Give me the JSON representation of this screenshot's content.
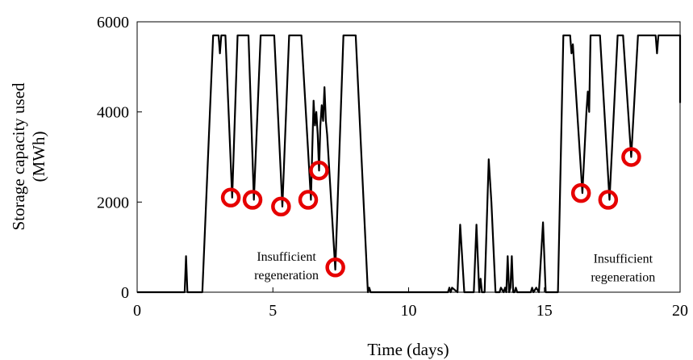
{
  "chart_data": {
    "type": "line",
    "title": "",
    "xlabel": "Time (days)",
    "ylabel_lines": [
      "Storage capacity used",
      "(MWh)"
    ],
    "xlim": [
      0,
      20
    ],
    "ylim": [
      0,
      6000
    ],
    "x_ticks": [
      0,
      5,
      10,
      15,
      20
    ],
    "y_ticks": [
      0,
      2000,
      4000,
      6000
    ],
    "grid": false,
    "line_color": "#000000",
    "marker_color": "#e60000",
    "series": [
      {
        "x": [
          0,
          1.75,
          1.8,
          1.85,
          1.9,
          2.0,
          2.4,
          2.8,
          3.0,
          3.05,
          3.1,
          3.15,
          3.2,
          3.25,
          3.5,
          3.7,
          3.9,
          4.1,
          4.3,
          4.55,
          4.75,
          4.8,
          5.05,
          5.35,
          5.6,
          5.6,
          6.05,
          6.4,
          6.5,
          6.55,
          6.6,
          6.65,
          6.7,
          6.75,
          6.8,
          6.85,
          6.9,
          6.95,
          7.0,
          7.3,
          7.6,
          7.75,
          7.95,
          8.05,
          8.5,
          8.55,
          8.6,
          8.65,
          11.45,
          11.5,
          11.55,
          11.6,
          11.7,
          11.8,
          11.9,
          12.05,
          12.4,
          12.5,
          12.6,
          12.65,
          12.7,
          12.8,
          12.95,
          13.05,
          13.2,
          13.35,
          13.4,
          13.5,
          13.55,
          13.6,
          13.65,
          13.7,
          13.75,
          13.8,
          13.85,
          13.9,
          13.95,
          14.0,
          14.5,
          14.55,
          14.6,
          14.7,
          14.8,
          14.95,
          15.05,
          15.5,
          15.7,
          15.95,
          16.0,
          16.05,
          16.4,
          16.55,
          16.6,
          16.65,
          16.7,
          16.8,
          17.05,
          17.4,
          17.7,
          17.9,
          18.2,
          18.45,
          18.95,
          19.0,
          19.05,
          19.1,
          19.15,
          19.2,
          19.25,
          19.3,
          20.0,
          20.0
        ],
        "y": [
          0,
          0,
          800,
          0,
          0,
          0,
          0,
          5700,
          5700,
          5300,
          5700,
          5700,
          5700,
          5700,
          2100,
          5700,
          5700,
          5700,
          2050,
          5700,
          5700,
          5700,
          5700,
          1900,
          5700,
          5700,
          5700,
          2050,
          4250,
          3700,
          4000,
          3500,
          2700,
          3700,
          4150,
          3800,
          4550,
          3800,
          3500,
          500,
          5700,
          5700,
          5700,
          5700,
          0,
          100,
          0,
          0,
          0,
          100,
          0,
          100,
          50,
          0,
          1500,
          0,
          0,
          1500,
          0,
          300,
          0,
          0,
          2950,
          2000,
          0,
          0,
          100,
          0,
          100,
          0,
          800,
          0,
          100,
          800,
          0,
          0,
          100,
          0,
          0,
          100,
          0,
          100,
          0,
          1550,
          0,
          0,
          5700,
          5700,
          5300,
          5500,
          2200,
          4000,
          4450,
          4000,
          5700,
          5700,
          5700,
          2050,
          5700,
          5700,
          3000,
          5700,
          5700,
          5700,
          5700,
          5700,
          5300,
          5700,
          5700,
          5700,
          5700,
          4200
        ]
      }
    ],
    "circled_points": [
      {
        "x": 3.45,
        "y": 2100
      },
      {
        "x": 4.25,
        "y": 2050
      },
      {
        "x": 5.3,
        "y": 1900
      },
      {
        "x": 6.3,
        "y": 2050
      },
      {
        "x": 6.7,
        "y": 2700
      },
      {
        "x": 7.3,
        "y": 550
      },
      {
        "x": 16.35,
        "y": 2200
      },
      {
        "x": 17.35,
        "y": 2050
      },
      {
        "x": 18.2,
        "y": 3000
      }
    ],
    "annotations": [
      {
        "lines": [
          "Insufficient",
          "regeneration"
        ],
        "x": 5.5,
        "y": 700
      },
      {
        "lines": [
          "Insufficient",
          "regeneration"
        ],
        "x": 17.9,
        "y": 650
      }
    ]
  }
}
